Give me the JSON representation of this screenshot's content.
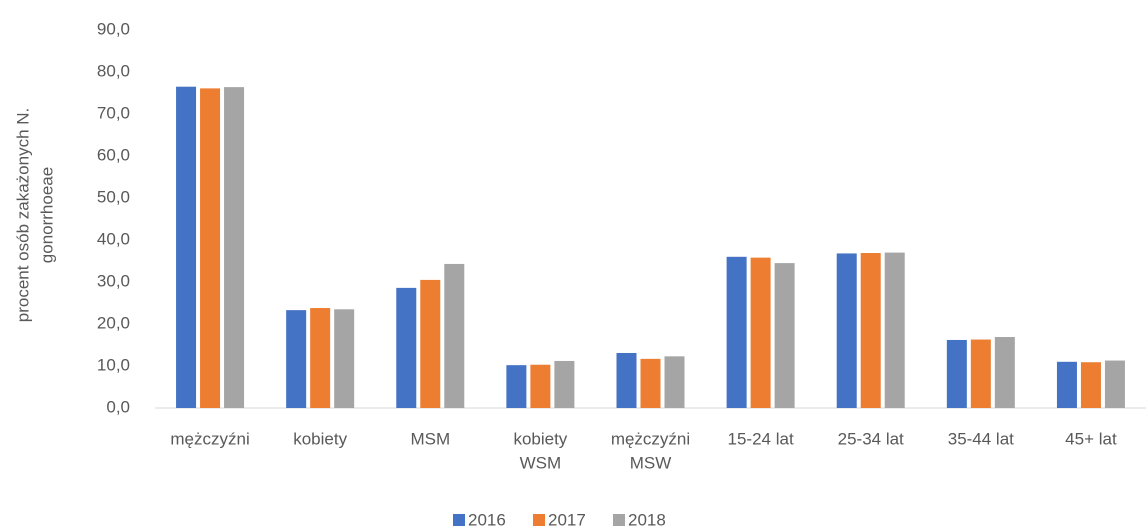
{
  "chart_data": {
    "type": "bar",
    "y_label": [
      "procent osób zakażonych N.",
      "gonorrhoeae"
    ],
    "categories": [
      [
        "mężczyźni"
      ],
      [
        "kobiety"
      ],
      [
        "MSM"
      ],
      [
        "kobiety",
        "WSM"
      ],
      [
        "mężczyźni",
        "MSW"
      ],
      [
        "15-24 lat"
      ],
      [
        "25-34 lat"
      ],
      [
        "35-44 lat"
      ],
      [
        "45+ lat"
      ]
    ],
    "series": [
      {
        "name": "2016",
        "color": "#4472c4",
        "values": [
          76.5,
          23.3,
          28.6,
          10.2,
          13.1,
          36.0,
          36.8,
          16.2,
          11.0
        ]
      },
      {
        "name": "2017",
        "color": "#ed7d31",
        "values": [
          76.1,
          23.8,
          30.5,
          10.3,
          11.7,
          35.8,
          36.9,
          16.3,
          10.9
        ]
      },
      {
        "name": "2018",
        "color": "#a5a5a5",
        "values": [
          76.4,
          23.5,
          34.3,
          11.2,
          12.3,
          34.5,
          37.0,
          16.9,
          11.3
        ]
      }
    ],
    "ylim": [
      0,
      90
    ],
    "yticks": [
      {
        "value": 0,
        "label": "0,0"
      },
      {
        "value": 10,
        "label": "10,0"
      },
      {
        "value": 20,
        "label": "20,0"
      },
      {
        "value": 30,
        "label": "30,0"
      },
      {
        "value": 40,
        "label": "40,0"
      },
      {
        "value": 50,
        "label": "50,0"
      },
      {
        "value": 60,
        "label": "60,0"
      },
      {
        "value": 70,
        "label": "70,0"
      },
      {
        "value": 80,
        "label": "80,0"
      },
      {
        "value": 90,
        "label": "90,0"
      }
    ],
    "legend": "bottom"
  }
}
